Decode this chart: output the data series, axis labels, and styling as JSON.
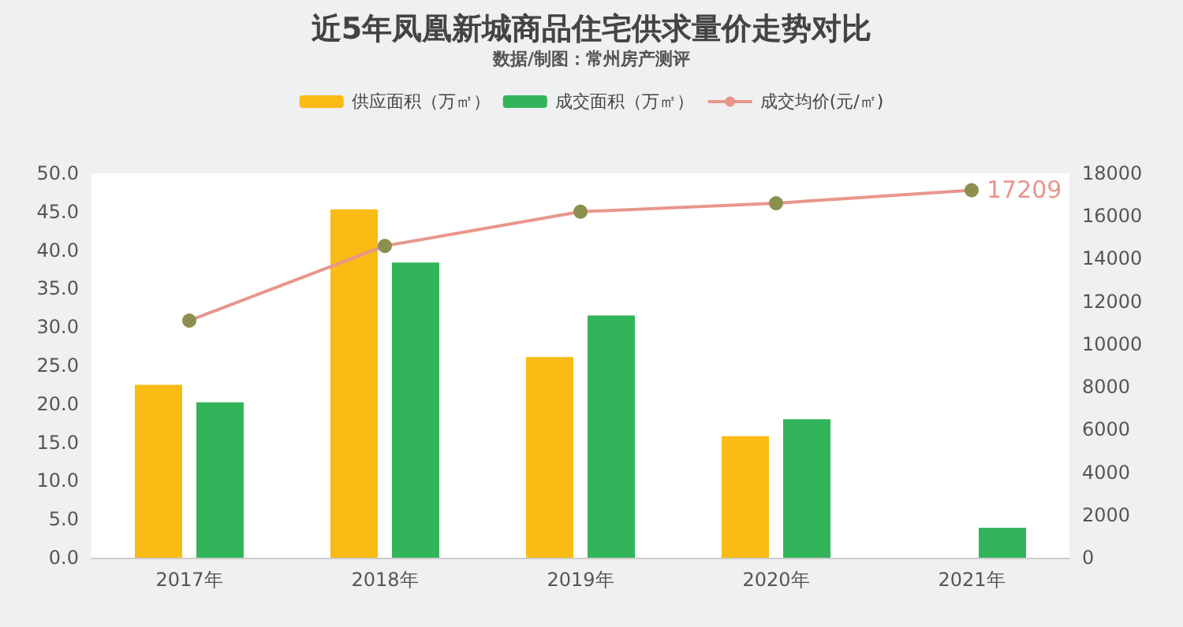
{
  "chart_data": {
    "type": "bar",
    "title": "近5年凤凰新城商品住宅供求量价走势对比",
    "subtitle": "数据/制图：常州房产测评",
    "categories": [
      "2017年",
      "2018年",
      "2019年",
      "2020年",
      "2021年"
    ],
    "series": [
      {
        "name": "供应面积（万㎡）",
        "color": "#f9bb14",
        "values": [
          22.5,
          45.3,
          26.1,
          15.8,
          null
        ]
      },
      {
        "name": "成交面积（万㎡）",
        "color": "#32b45a",
        "values": [
          20.2,
          38.4,
          31.5,
          18.0,
          3.9
        ]
      },
      {
        "name": "成交均价(元/㎡)",
        "type": "line",
        "axis": "y2",
        "color": "#e8968c",
        "colors": [
          "#8d8f4e",
          "#8d8f4e",
          "#8d8f4e",
          "#8d8f4e",
          "#8d8f4e"
        ],
        "values": [
          11100,
          14600,
          16200,
          16600,
          17209
        ],
        "value_labels": [
          null,
          null,
          null,
          null,
          "17209"
        ]
      }
    ],
    "ylim": [
      0,
      50
    ],
    "yticks": [
      {
        "value": 0,
        "label": "0.0"
      },
      {
        "value": 5,
        "label": "5.0"
      },
      {
        "value": 10,
        "label": "10.0"
      },
      {
        "value": 15,
        "label": "15.0"
      },
      {
        "value": 20,
        "label": "20.0"
      },
      {
        "value": 25,
        "label": "25.0"
      },
      {
        "value": 30,
        "label": "30.0"
      },
      {
        "value": 35,
        "label": "35.0"
      },
      {
        "value": 40,
        "label": "40.0"
      },
      {
        "value": 45,
        "label": "45.0"
      },
      {
        "value": 50,
        "label": "50.0"
      }
    ],
    "y2lim": [
      0,
      18000
    ],
    "y2ticks": [
      0,
      2000,
      4000,
      6000,
      8000,
      10000,
      12000,
      14000,
      16000,
      18000
    ],
    "legend": "top",
    "marker": "circle",
    "line_style": "solid"
  }
}
